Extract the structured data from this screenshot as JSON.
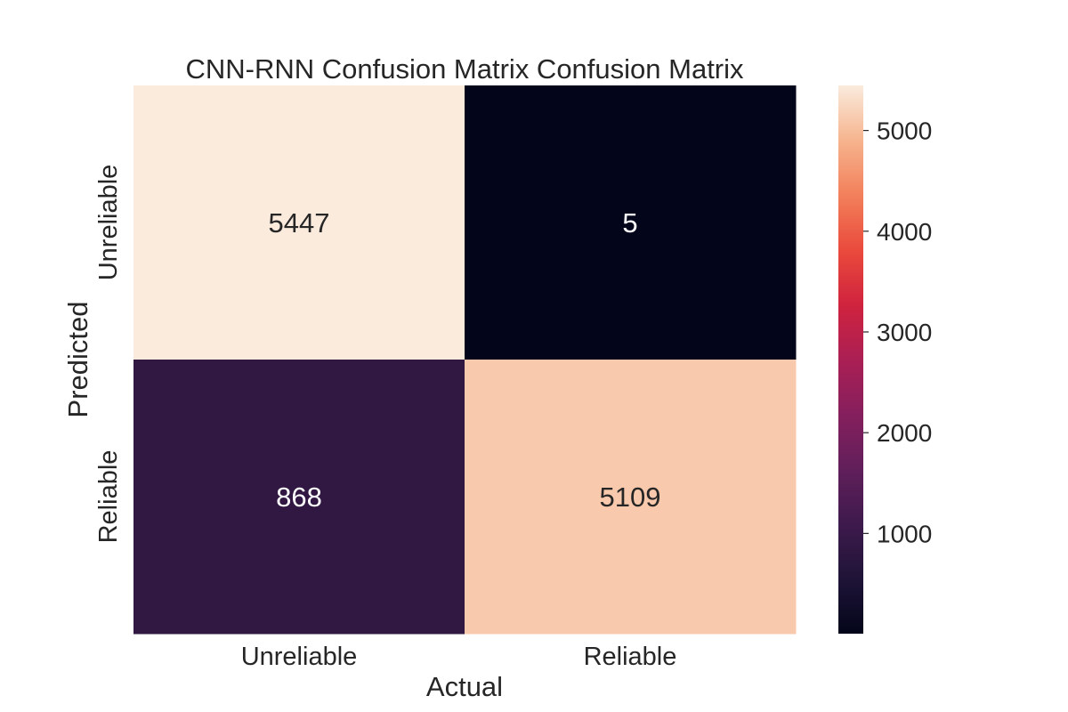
{
  "chart_data": {
    "type": "heatmap",
    "title": "CNN-RNN Confusion Matrix Confusion Matrix",
    "xlabel": "Actual",
    "ylabel": "Predicted",
    "x_categories": [
      "Unreliable",
      "Reliable"
    ],
    "y_categories": [
      "Unreliable",
      "Reliable"
    ],
    "values": [
      [
        5447,
        5
      ],
      [
        868,
        5109
      ]
    ],
    "colorscale": "rocket",
    "colorbar": {
      "range": [
        5,
        5447
      ],
      "ticks": [
        1000,
        2000,
        3000,
        4000,
        5000
      ],
      "tick_labels": [
        "1000",
        "2000",
        "3000",
        "4000",
        "5000"
      ]
    },
    "grid": false,
    "legend": "colorbar-right"
  }
}
